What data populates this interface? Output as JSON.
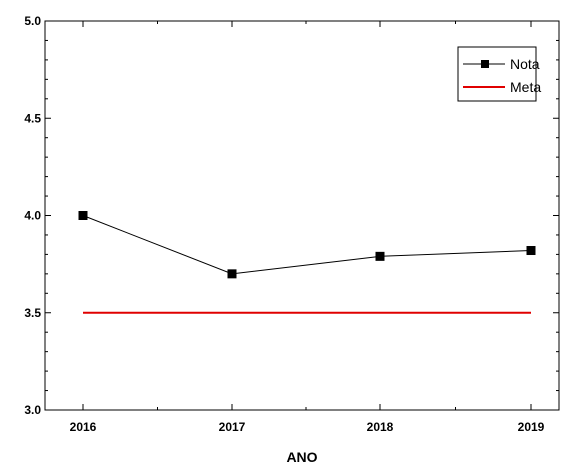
{
  "chart_data": {
    "type": "line",
    "title": "",
    "xlabel": "ANO",
    "ylabel": "",
    "categories": [
      "2016",
      "2017",
      "2018",
      "2019"
    ],
    "ylim": [
      3.0,
      5.0
    ],
    "yticks": [
      "3.0",
      "3.5",
      "4.0",
      "4.5",
      "5.0"
    ],
    "grid": false,
    "legend_position": "top-right",
    "series": [
      {
        "name": "Nota",
        "values": [
          4.0,
          3.7,
          3.79,
          3.82
        ],
        "color": "#000000",
        "marker": "square"
      },
      {
        "name": "Meta",
        "values": [
          3.5,
          3.5,
          3.5,
          3.5
        ],
        "color": "#e00000",
        "marker": "none"
      }
    ]
  }
}
